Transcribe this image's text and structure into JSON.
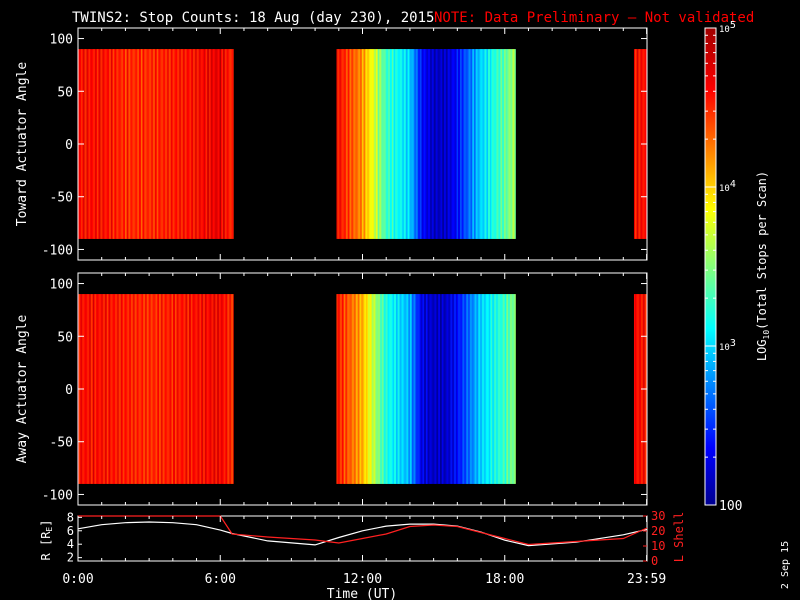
{
  "header": {
    "title": "TWINS2: Stop Counts: 18 Aug (day 230), 2015",
    "note": "NOTE: Data Preliminary – Not validated"
  },
  "colors": {
    "background": "#000000",
    "axis": "#ffffff",
    "note": "#ff0000",
    "r_line": "#ffffff",
    "lshell_line": "#ff2020"
  },
  "stamp": "2 Sep 15",
  "chart_data": [
    {
      "type": "heatmap",
      "panel": "toward",
      "ylabel": "Toward Actuator Angle",
      "ylim": [
        -110,
        110
      ],
      "yticks": [
        "100",
        "50",
        "0",
        "-50",
        "-100"
      ],
      "xlim_hours": [
        0,
        24
      ],
      "scan_angle_range": [
        -90,
        90
      ],
      "data_coverage_hours": [
        [
          0.0,
          6.55
        ],
        [
          10.9,
          18.45
        ],
        [
          23.45,
          24.0
        ]
      ],
      "log10_counts_profile": {
        "hours": [
          0.0,
          1.0,
          2.0,
          3.0,
          4.0,
          5.0,
          6.0,
          6.5,
          11.0,
          12.0,
          13.0,
          14.0,
          14.5,
          15.0,
          15.5,
          16.0,
          17.0,
          18.0,
          18.4,
          23.5,
          24.0
        ],
        "values": [
          4.6,
          4.6,
          4.5,
          4.5,
          4.55,
          4.6,
          4.7,
          4.5,
          4.6,
          4.2,
          3.3,
          3.0,
          2.4,
          2.2,
          2.2,
          2.4,
          3.0,
          3.4,
          3.6,
          4.6,
          4.6
        ]
      }
    },
    {
      "type": "heatmap",
      "panel": "away",
      "ylabel": "Away Actuator Angle",
      "ylim": [
        -110,
        110
      ],
      "yticks": [
        "100",
        "50",
        "0",
        "-50",
        "-100"
      ],
      "xlim_hours": [
        0,
        24
      ],
      "scan_angle_range": [
        -90,
        90
      ],
      "data_coverage_hours": [
        [
          0.0,
          6.55
        ],
        [
          10.9,
          18.45
        ],
        [
          23.45,
          24.0
        ]
      ],
      "log10_counts_profile": {
        "hours": [
          0.0,
          1.0,
          2.0,
          3.0,
          4.0,
          5.0,
          6.0,
          6.5,
          11.0,
          12.0,
          13.0,
          14.0,
          14.5,
          15.0,
          15.5,
          16.0,
          17.0,
          18.0,
          18.4,
          23.5,
          24.0
        ],
        "values": [
          4.6,
          4.6,
          4.55,
          4.5,
          4.55,
          4.6,
          4.65,
          4.5,
          4.55,
          4.1,
          3.2,
          2.9,
          2.3,
          2.2,
          2.2,
          2.4,
          3.0,
          3.3,
          3.5,
          4.6,
          4.6
        ]
      }
    },
    {
      "type": "line",
      "panel": "orbit",
      "ylabel": "R [R",
      "ylabel_sub": "E",
      "ylabel_close": "]",
      "ylabel_right": "L Shell",
      "ylim": [
        1.5,
        8.2
      ],
      "yticks": [
        "8",
        "6",
        "4",
        "2"
      ],
      "ylim_right": [
        0,
        30
      ],
      "yticks_right": [
        "30",
        "20",
        "10",
        "0"
      ],
      "x": [
        0.0,
        1.0,
        2.0,
        3.0,
        4.0,
        5.0,
        6.0,
        6.5,
        8.0,
        10.0,
        11.0,
        12.0,
        13.0,
        14.0,
        15.0,
        16.0,
        17.0,
        18.0,
        19.0,
        21.0,
        23.0,
        24.0
      ],
      "series": [
        {
          "axis": "left",
          "values": [
            6.3,
            6.9,
            7.2,
            7.3,
            7.2,
            6.9,
            6.1,
            5.6,
            4.5,
            3.9,
            5.0,
            6.0,
            6.7,
            7.0,
            7.0,
            6.7,
            5.8,
            4.6,
            3.8,
            4.3,
            5.4,
            6.2
          ]
        },
        {
          "axis": "right",
          "values": [
            30,
            30,
            30,
            30,
            30,
            30,
            30,
            18,
            16,
            14,
            12,
            15,
            18,
            23,
            24,
            23,
            19,
            15,
            11,
            13,
            15,
            22
          ]
        }
      ]
    }
  ],
  "xaxis": {
    "ticks": [
      "0:00",
      "6:00",
      "12:00",
      "18:00",
      "23:59"
    ],
    "label": "Time (UT)"
  },
  "colorbar": {
    "label_main": "LOG",
    "label_sub": "10",
    "label_rest": "(Total Stops per Scan)",
    "range_log10": [
      2,
      5
    ],
    "ticks": [
      {
        "mantissa": "10",
        "exp": "5",
        "plain": "",
        "value": 5
      },
      {
        "mantissa": "10",
        "exp": "4",
        "plain": "",
        "value": 4
      },
      {
        "mantissa": "10",
        "exp": "3",
        "plain": "",
        "value": 3
      },
      {
        "mantissa": "",
        "exp": "",
        "plain": "100",
        "value": 2
      }
    ]
  }
}
